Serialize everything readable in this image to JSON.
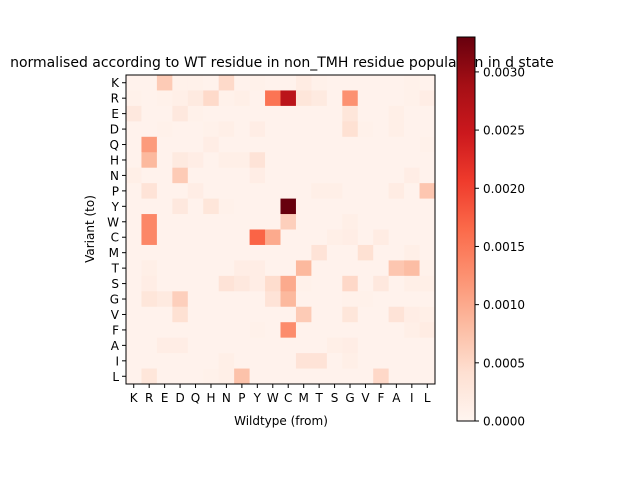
{
  "chart_data": {
    "type": "heatmap",
    "title": "normalised according to WT residue in non_TMH residue population in d state",
    "xlabel": "Wildtype (from)",
    "ylabel": "Variant (to)",
    "x_categories": [
      "K",
      "R",
      "E",
      "D",
      "Q",
      "H",
      "N",
      "P",
      "Y",
      "W",
      "C",
      "M",
      "T",
      "S",
      "G",
      "V",
      "F",
      "A",
      "I",
      "L"
    ],
    "y_categories": [
      "K",
      "R",
      "E",
      "D",
      "Q",
      "H",
      "N",
      "P",
      "Y",
      "W",
      "C",
      "M",
      "T",
      "S",
      "G",
      "V",
      "F",
      "A",
      "I",
      "L"
    ],
    "colorbar": {
      "min": 0.0,
      "max": 0.0033,
      "ticks": [
        "0.0000",
        "0.0005",
        "0.0010",
        "0.0015",
        "0.0020",
        "0.0025",
        "0.0030"
      ],
      "colormap": "Reds"
    },
    "values": [
      [
        5e-05,
        5e-05,
        0.00065,
        8e-05,
        8e-05,
        5e-05,
        0.00048,
        5e-05,
        8e-05,
        5e-05,
        5e-05,
        0.00018,
        8e-05,
        5e-05,
        5e-05,
        5e-05,
        5e-05,
        5e-05,
        8e-05,
        5e-05
      ],
      [
        8e-05,
        5e-05,
        8e-05,
        0.00012,
        0.00022,
        0.00048,
        8e-05,
        0.00012,
        5e-05,
        0.00155,
        0.00265,
        0.0003,
        0.00022,
        5e-05,
        0.00125,
        5e-05,
        5e-05,
        5e-05,
        8e-05,
        0.00015
      ],
      [
        0.00025,
        5e-05,
        5e-05,
        0.00025,
        8e-05,
        5e-05,
        5e-05,
        5e-05,
        5e-05,
        5e-05,
        5e-05,
        5e-05,
        5e-05,
        5e-05,
        0.0003,
        5e-05,
        5e-05,
        0.00012,
        5e-05,
        5e-05
      ],
      [
        5e-05,
        5e-05,
        8e-05,
        5e-05,
        5e-05,
        8e-05,
        0.00012,
        5e-05,
        0.00015,
        5e-05,
        5e-05,
        5e-05,
        5e-05,
        5e-05,
        0.0004,
        8e-05,
        5e-05,
        0.00012,
        5e-05,
        5e-05
      ],
      [
        5e-05,
        0.00115,
        5e-05,
        5e-05,
        5e-05,
        0.00015,
        5e-05,
        5e-05,
        5e-05,
        5e-05,
        5e-05,
        5e-05,
        5e-05,
        5e-05,
        5e-05,
        5e-05,
        5e-05,
        5e-05,
        5e-05,
        8e-05
      ],
      [
        5e-05,
        0.00085,
        5e-05,
        0.00022,
        0.00015,
        5e-05,
        0.00012,
        0.00012,
        0.00035,
        5e-05,
        5e-05,
        5e-05,
        5e-05,
        5e-05,
        5e-05,
        5e-05,
        5e-05,
        5e-05,
        5e-05,
        5e-05
      ],
      [
        0.00012,
        5e-05,
        5e-05,
        0.00065,
        5e-05,
        5e-05,
        5e-05,
        5e-05,
        0.00015,
        5e-05,
        5e-05,
        5e-05,
        5e-05,
        5e-05,
        5e-05,
        5e-05,
        5e-05,
        5e-05,
        0.00015,
        5e-05
      ],
      [
        5e-05,
        0.00035,
        5e-05,
        5e-05,
        0.00015,
        5e-05,
        5e-05,
        5e-05,
        5e-05,
        5e-05,
        5e-05,
        5e-05,
        0.00012,
        0.00012,
        5e-05,
        5e-05,
        5e-05,
        0.00018,
        5e-05,
        0.0007
      ],
      [
        5e-05,
        5e-05,
        5e-05,
        0.00025,
        5e-05,
        0.0003,
        8e-05,
        5e-05,
        5e-05,
        5e-05,
        0.0033,
        5e-05,
        5e-05,
        5e-05,
        5e-05,
        5e-05,
        5e-05,
        5e-05,
        5e-05,
        5e-05
      ],
      [
        5e-05,
        0.00135,
        5e-05,
        5e-05,
        5e-05,
        5e-05,
        5e-05,
        5e-05,
        5e-05,
        5e-05,
        0.0006,
        5e-05,
        5e-05,
        5e-05,
        0.00012,
        5e-05,
        5e-05,
        5e-05,
        5e-05,
        5e-05
      ],
      [
        5e-05,
        0.00135,
        5e-05,
        5e-05,
        5e-05,
        5e-05,
        5e-05,
        5e-05,
        0.0017,
        0.001,
        5e-05,
        5e-05,
        5e-05,
        0.00012,
        0.00015,
        5e-05,
        0.00018,
        5e-05,
        5e-05,
        5e-05
      ],
      [
        5e-05,
        5e-05,
        5e-05,
        5e-05,
        5e-05,
        5e-05,
        5e-05,
        5e-05,
        5e-05,
        5e-05,
        5e-05,
        5e-05,
        0.00035,
        5e-05,
        5e-05,
        0.0004,
        5e-05,
        5e-05,
        0.00012,
        5e-05
      ],
      [
        5e-05,
        0.00012,
        5e-05,
        5e-05,
        5e-05,
        5e-05,
        5e-05,
        0.00015,
        0.00015,
        5e-05,
        5e-05,
        0.00085,
        5e-05,
        5e-05,
        5e-05,
        5e-05,
        5e-05,
        0.0007,
        0.0008,
        8e-05
      ],
      [
        5e-05,
        0.00015,
        5e-05,
        5e-05,
        5e-05,
        5e-05,
        0.00035,
        0.00025,
        0.00015,
        0.00045,
        0.001,
        8e-05,
        5e-05,
        5e-05,
        0.0005,
        5e-05,
        0.00025,
        5e-05,
        0.00012,
        0.00012
      ],
      [
        5e-05,
        0.0003,
        0.00022,
        0.0006,
        5e-05,
        5e-05,
        5e-05,
        5e-05,
        5e-05,
        0.00035,
        0.00085,
        5e-05,
        5e-05,
        5e-05,
        8e-05,
        8e-05,
        5e-05,
        5e-05,
        5e-05,
        5e-05
      ],
      [
        5e-05,
        5e-05,
        5e-05,
        0.0004,
        5e-05,
        5e-05,
        5e-05,
        5e-05,
        5e-05,
        5e-05,
        5e-05,
        0.00065,
        5e-05,
        5e-05,
        0.0003,
        5e-05,
        5e-05,
        0.00035,
        0.00015,
        0.00012
      ],
      [
        5e-05,
        5e-05,
        5e-05,
        5e-05,
        5e-05,
        5e-05,
        5e-05,
        5e-05,
        8e-05,
        5e-05,
        0.0013,
        5e-05,
        5e-05,
        5e-05,
        5e-05,
        5e-05,
        5e-05,
        5e-05,
        0.00012,
        0.00018
      ],
      [
        5e-05,
        5e-05,
        0.00015,
        0.00015,
        5e-05,
        5e-05,
        5e-05,
        5e-05,
        5e-05,
        5e-05,
        5e-05,
        5e-05,
        5e-05,
        0.00012,
        0.00015,
        5e-05,
        5e-05,
        5e-05,
        5e-05,
        5e-05
      ],
      [
        5e-05,
        5e-05,
        5e-05,
        5e-05,
        5e-05,
        5e-05,
        0.00012,
        5e-05,
        5e-05,
        5e-05,
        5e-05,
        0.00035,
        0.00035,
        5e-05,
        0.00012,
        5e-05,
        5e-05,
        5e-05,
        5e-05,
        5e-05
      ],
      [
        5e-05,
        0.0003,
        5e-05,
        5e-05,
        5e-05,
        8e-05,
        0.00012,
        0.00075,
        5e-05,
        5e-05,
        5e-05,
        5e-05,
        5e-05,
        5e-05,
        5e-05,
        5e-05,
        0.0005,
        5e-05,
        5e-05,
        5e-05
      ]
    ]
  }
}
